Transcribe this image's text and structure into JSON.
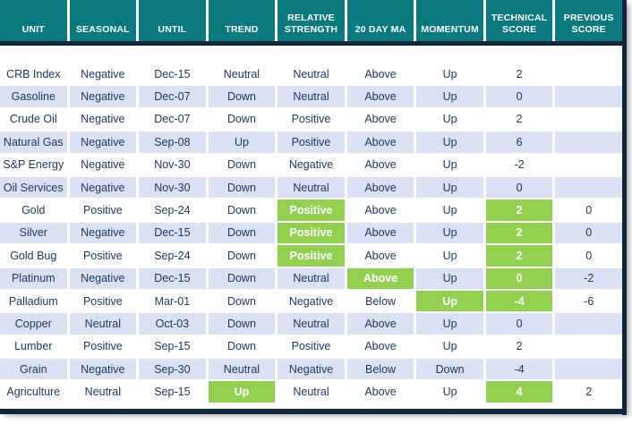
{
  "chart_data": {
    "type": "table",
    "columns": [
      "UNIT",
      "SEASONAL",
      "UNTIL",
      "TREND",
      "RELATIVE STRENGTH",
      "20 DAY MA",
      "MOMENTUM",
      "TECHNICAL SCORE",
      "PREVIOUS SCORE"
    ],
    "column_keys": [
      "unit",
      "seasonal",
      "until",
      "trend",
      "relative-strength",
      "20-day-ma",
      "momentum",
      "technical-score",
      "previous-score"
    ],
    "highlight_meaning": "green-highlighted-cell",
    "rows": [
      {
        "cells": [
          "CRB Index",
          "Negative",
          "Dec-15",
          "Neutral",
          "Neutral",
          "Above",
          "Up",
          "2",
          ""
        ],
        "green": []
      },
      {
        "cells": [
          "Gasoline",
          "Negative",
          "Dec-07",
          "Down",
          "Neutral",
          "Above",
          "Up",
          "0",
          ""
        ],
        "green": []
      },
      {
        "cells": [
          "Crude Oil",
          "Negative",
          "Dec-07",
          "Down",
          "Positive",
          "Above",
          "Up",
          "2",
          ""
        ],
        "green": []
      },
      {
        "cells": [
          "Natural Gas",
          "Negative",
          "Sep-08",
          "Up",
          "Positive",
          "Above",
          "Up",
          "6",
          ""
        ],
        "green": []
      },
      {
        "cells": [
          "S&P Energy",
          "Negative",
          "Nov-30",
          "Down",
          "Negative",
          "Above",
          "Up",
          "-2",
          ""
        ],
        "green": []
      },
      {
        "cells": [
          "Oil Services",
          "Negative",
          "Nov-30",
          "Down",
          "Neutral",
          "Above",
          "Up",
          "0",
          ""
        ],
        "green": []
      },
      {
        "cells": [
          "Gold",
          "Positive",
          "Sep-24",
          "Down",
          "Positive",
          "Above",
          "Up",
          "2",
          "0"
        ],
        "green": [
          4,
          7
        ]
      },
      {
        "cells": [
          "Silver",
          "Negative",
          "Dec-15",
          "Down",
          "Positive",
          "Above",
          "Up",
          "2",
          "0"
        ],
        "green": [
          4,
          7
        ]
      },
      {
        "cells": [
          "Gold Bug",
          "Positive",
          "Sep-24",
          "Down",
          "Positive",
          "Above",
          "Up",
          "2",
          "0"
        ],
        "green": [
          4,
          7
        ]
      },
      {
        "cells": [
          "Platinum",
          "Negative",
          "Dec-15",
          "Down",
          "Neutral",
          "Above",
          "Up",
          "0",
          "-2"
        ],
        "green": [
          5,
          7
        ]
      },
      {
        "cells": [
          "Palladium",
          "Positive",
          "Mar-01",
          "Down",
          "Negative",
          "Below",
          "Up",
          "-4",
          "-6"
        ],
        "green": [
          6,
          7
        ]
      },
      {
        "cells": [
          "Copper",
          "Neutral",
          "Oct-03",
          "Down",
          "Neutral",
          "Above",
          "Up",
          "0",
          ""
        ],
        "green": []
      },
      {
        "cells": [
          "Lumber",
          "Positive",
          "Sep-15",
          "Down",
          "Positive",
          "Above",
          "Up",
          "2",
          ""
        ],
        "green": []
      },
      {
        "cells": [
          "Grain",
          "Negative",
          "Sep-30",
          "Neutral",
          "Negative",
          "Below",
          "Down",
          "-4",
          ""
        ],
        "green": []
      },
      {
        "cells": [
          "Agriculture",
          "Neutral",
          "Sep-15",
          "Up",
          "Neutral",
          "Above",
          "Up",
          "4",
          "2"
        ],
        "green": [
          3,
          7
        ]
      }
    ]
  },
  "colors": {
    "header_bg": "#0A7A7E",
    "header_text": "#FFFFFF",
    "border_dark": "#12263A",
    "row_bg": "#FFFFFF",
    "row_alt_bg": "#D9E1F2",
    "text": "#1F3864",
    "highlight_bg": "#92D050",
    "highlight_text": "#FFFFFF"
  }
}
